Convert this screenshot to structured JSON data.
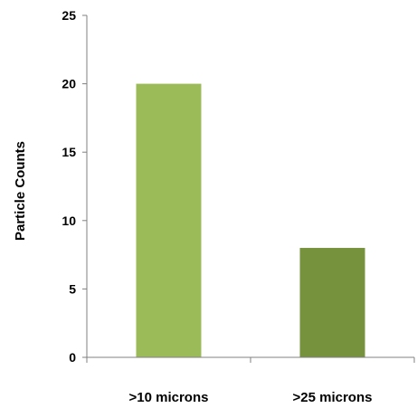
{
  "chart_data": {
    "type": "bar",
    "categories": [
      ">10 microns",
      ">25 microns"
    ],
    "values": [
      20,
      8
    ],
    "bar_colors": [
      "#9BBB59",
      "#76923C"
    ],
    "ylabel": "Particle Counts",
    "xlabel": "",
    "ylim": [
      0,
      25
    ],
    "yticks": [
      "0",
      "5",
      "10",
      "15",
      "20",
      "25"
    ],
    "grid": false,
    "legend": "none"
  }
}
